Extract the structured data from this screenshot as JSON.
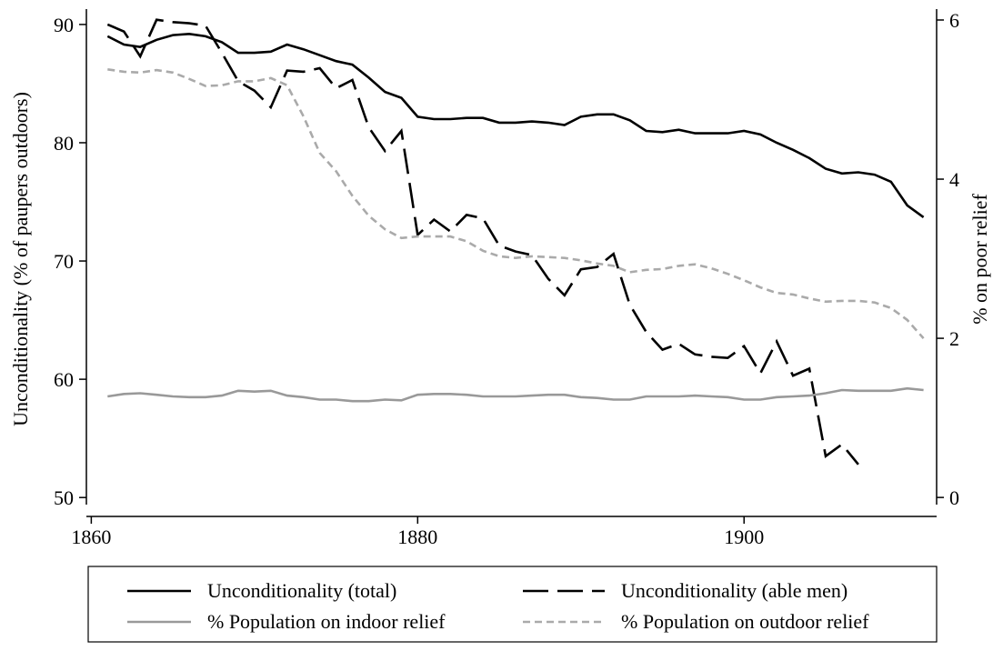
{
  "chart_data": {
    "type": "line",
    "ylabel": "Unconditionality (% of paupers outdoors)",
    "y2label": "% on poor relief",
    "x": [
      1861,
      1862,
      1863,
      1864,
      1865,
      1866,
      1867,
      1868,
      1869,
      1870,
      1871,
      1872,
      1873,
      1874,
      1875,
      1876,
      1877,
      1878,
      1879,
      1880,
      1881,
      1882,
      1883,
      1884,
      1885,
      1886,
      1887,
      1888,
      1889,
      1890,
      1891,
      1892,
      1893,
      1894,
      1895,
      1896,
      1897,
      1898,
      1899,
      1900,
      1901,
      1902,
      1903,
      1904,
      1905,
      1906,
      1907,
      1908,
      1909,
      1910,
      1911
    ],
    "xlim": [
      1859.7,
      1911.8
    ],
    "xticks": [
      1860,
      1880,
      1900
    ],
    "ylim": [
      49.4,
      91.3
    ],
    "yticks": [
      50,
      60,
      70,
      80,
      90
    ],
    "y2lim": [
      -0.09,
      6.137
    ],
    "y2ticks": [
      0,
      2,
      4,
      6
    ],
    "legend": "bottom",
    "series": [
      {
        "name": "Unconditionality (total)",
        "color": "#000000",
        "dash": "solid",
        "axis": "y",
        "values": [
          89.0,
          88.3,
          88.1,
          88.7,
          89.1,
          89.2,
          89.0,
          88.5,
          87.6,
          87.6,
          87.7,
          88.3,
          87.9,
          87.4,
          86.9,
          86.6,
          85.5,
          84.3,
          83.8,
          82.2,
          82.0,
          82.0,
          82.1,
          82.1,
          81.7,
          81.7,
          81.8,
          81.7,
          81.5,
          82.2,
          82.4,
          82.4,
          81.9,
          81.0,
          80.9,
          81.1,
          80.8,
          80.8,
          80.8,
          81.0,
          80.7,
          80.0,
          79.4,
          78.7,
          77.8,
          77.4,
          77.5,
          77.3,
          76.7,
          74.7,
          73.7
        ]
      },
      {
        "name": "Unconditionality (able men)",
        "color": "#000000",
        "dash": "long",
        "axis": "y",
        "values": [
          90.0,
          89.4,
          87.3,
          90.4,
          90.2,
          90.1,
          89.9,
          87.6,
          85.2,
          84.4,
          83.0,
          86.1,
          86.0,
          86.3,
          84.6,
          85.3,
          81.3,
          79.3,
          81.0,
          72.2,
          73.5,
          72.5,
          73.9,
          73.6,
          71.3,
          70.8,
          70.5,
          68.5,
          67.1,
          69.3,
          69.5,
          70.6,
          66.3,
          64.0,
          62.5,
          63.0,
          62.1,
          61.9,
          61.8,
          62.8,
          60.5,
          63.2,
          60.3,
          60.9,
          53.5,
          54.5,
          52.8,
          null,
          null,
          null,
          null
        ]
      },
      {
        "name": "% Population on indoor relief",
        "color": "#999999",
        "dash": "solid",
        "axis": "y2",
        "values": [
          1.27,
          1.3,
          1.31,
          1.29,
          1.27,
          1.26,
          1.26,
          1.28,
          1.34,
          1.33,
          1.34,
          1.28,
          1.26,
          1.23,
          1.23,
          1.21,
          1.21,
          1.23,
          1.22,
          1.29,
          1.3,
          1.3,
          1.29,
          1.27,
          1.27,
          1.27,
          1.28,
          1.29,
          1.29,
          1.26,
          1.25,
          1.23,
          1.23,
          1.27,
          1.27,
          1.27,
          1.28,
          1.27,
          1.26,
          1.23,
          1.23,
          1.26,
          1.27,
          1.28,
          1.31,
          1.35,
          1.34,
          1.34,
          1.34,
          1.37,
          1.35
        ]
      },
      {
        "name": "% Population on outdoor relief",
        "color": "#aaaaaa",
        "dash": "short",
        "axis": "y2",
        "values": [
          5.38,
          5.35,
          5.34,
          5.37,
          5.34,
          5.26,
          5.17,
          5.18,
          5.23,
          5.23,
          5.27,
          5.18,
          4.79,
          4.33,
          4.1,
          3.79,
          3.54,
          3.37,
          3.26,
          3.28,
          3.28,
          3.28,
          3.22,
          3.1,
          3.03,
          3.01,
          3.03,
          3.02,
          3.01,
          2.98,
          2.94,
          2.91,
          2.83,
          2.86,
          2.87,
          2.91,
          2.93,
          2.88,
          2.81,
          2.73,
          2.64,
          2.57,
          2.55,
          2.5,
          2.46,
          2.47,
          2.47,
          2.45,
          2.38,
          2.23,
          2.0
        ]
      }
    ]
  }
}
